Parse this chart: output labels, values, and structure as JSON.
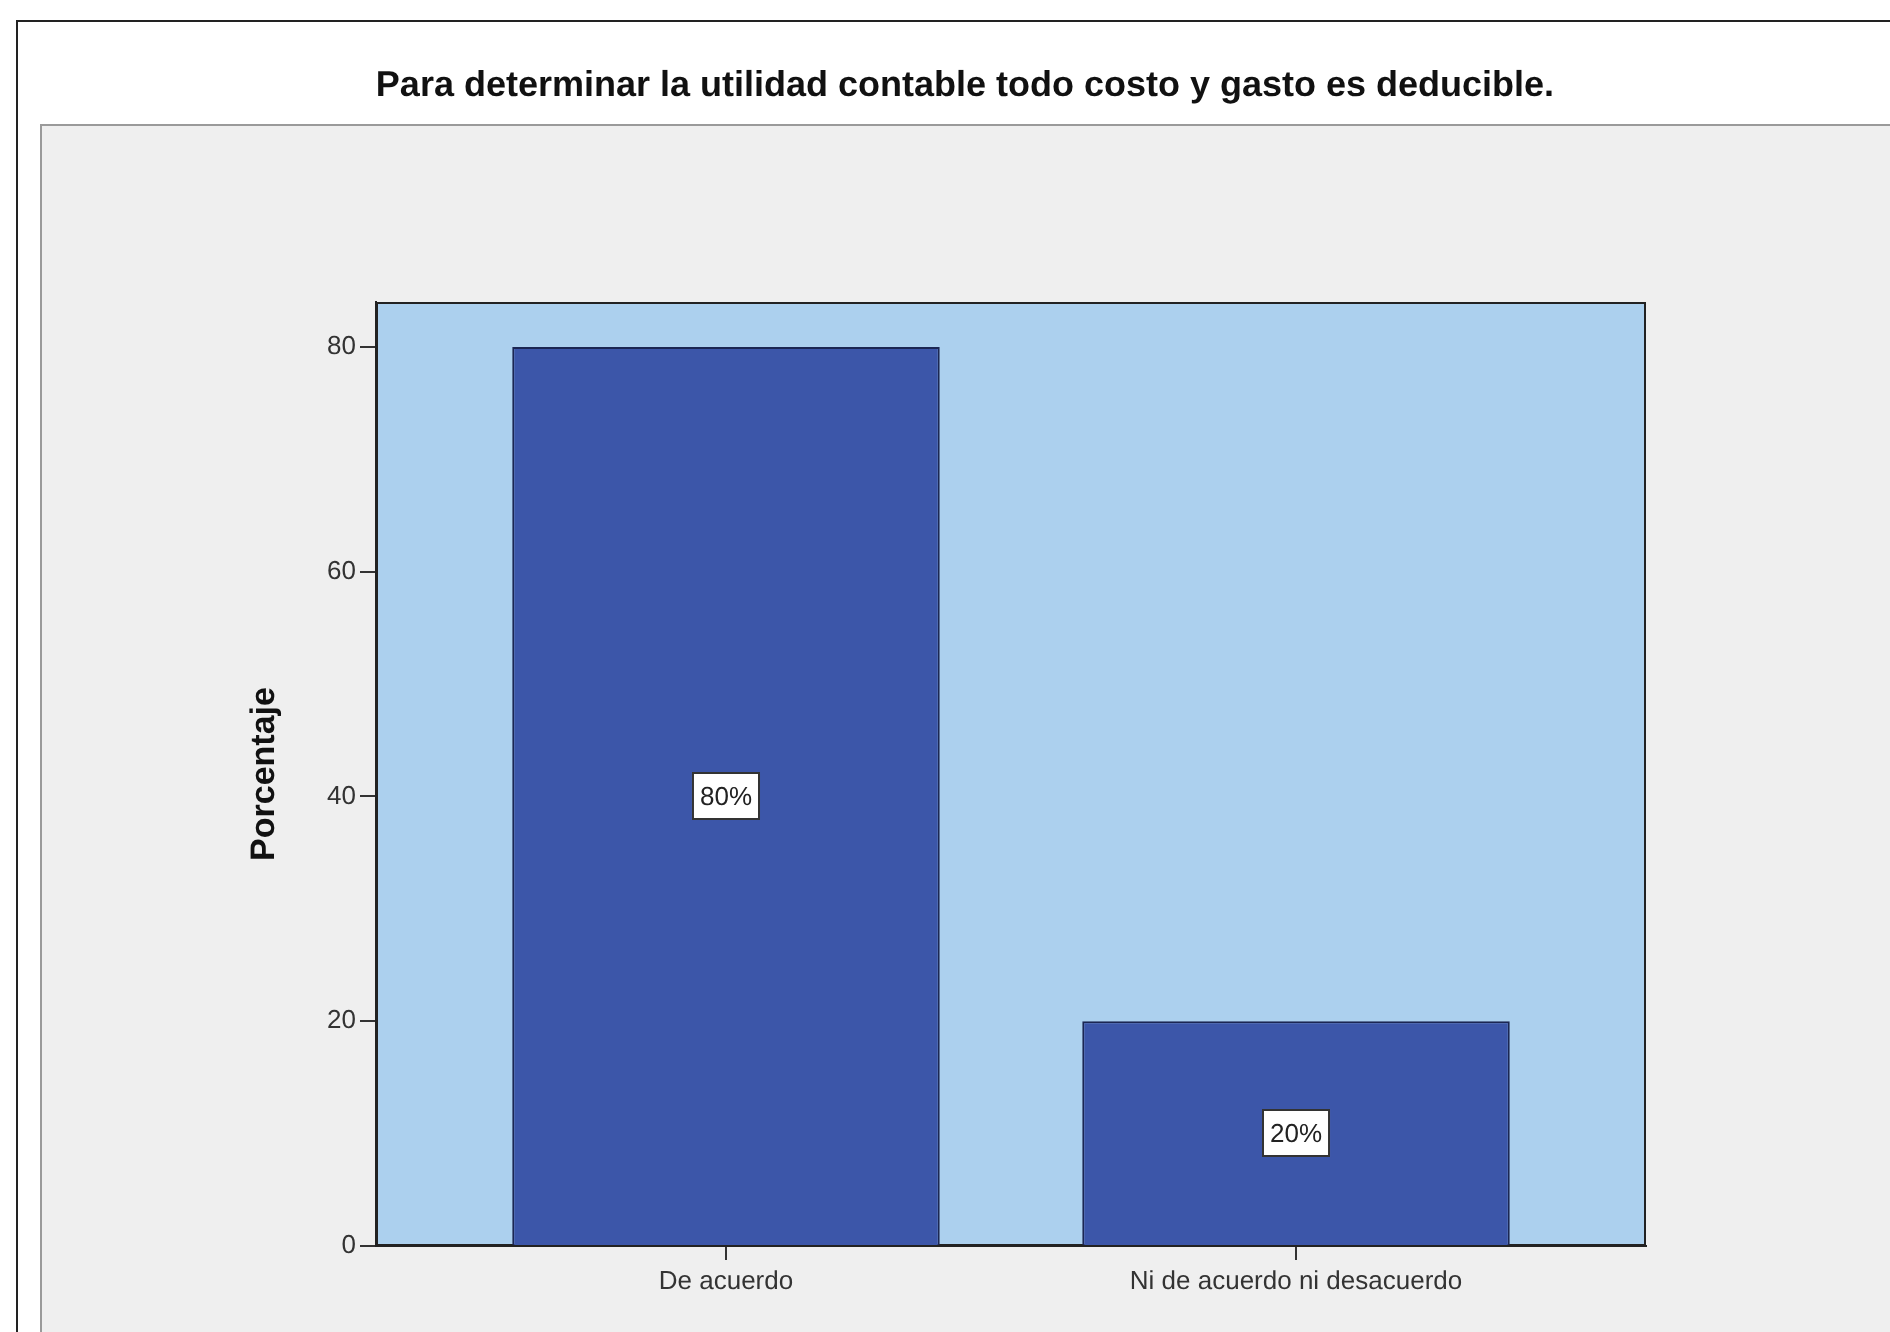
{
  "chart_data": {
    "type": "bar",
    "title": "Para determinar la utilidad contable todo costo y gasto es deducible.",
    "ylabel": "Porcentaje",
    "categories": [
      "De acuerdo",
      "Ni de acuerdo ni desacuerdo"
    ],
    "values": [
      80,
      20
    ],
    "color": "#3c56a9",
    "value_labels": [
      "80%",
      "20%"
    ],
    "ylim": [
      0,
      84
    ],
    "yticks": [
      0,
      20,
      40,
      60,
      80
    ]
  }
}
